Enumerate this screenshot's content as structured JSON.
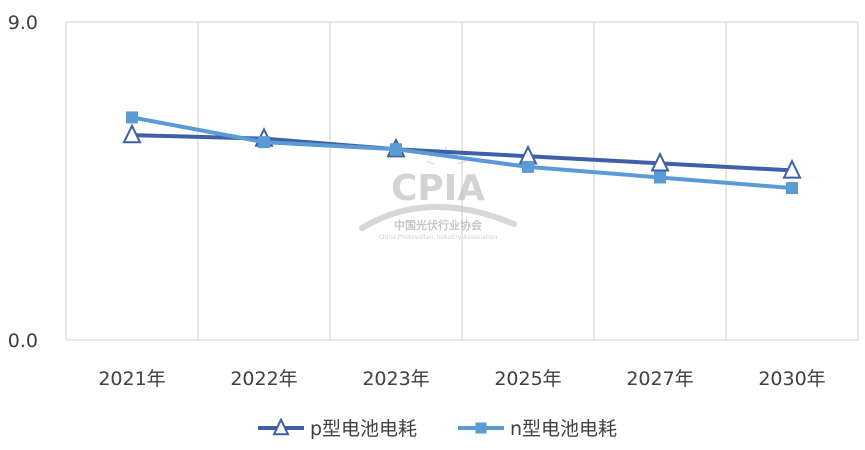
{
  "chart_data": {
    "type": "line",
    "categories": [
      "2021年",
      "2022年",
      "2023年",
      "2025年",
      "2027年",
      "2030年"
    ],
    "series": [
      {
        "name": "p型电池电耗",
        "values": [
          5.8,
          5.7,
          5.4,
          5.2,
          5.0,
          4.8
        ],
        "color": "#3F5FA6",
        "marker": "triangle-open"
      },
      {
        "name": "n型电池电耗",
        "values": [
          6.3,
          5.6,
          5.4,
          4.9,
          4.6,
          4.3
        ],
        "color": "#5B9BD5",
        "marker": "square"
      }
    ],
    "ylim": [
      0,
      9
    ],
    "yticks": [
      "0.0",
      "9.0"
    ],
    "grid": {
      "vertical": true,
      "horizontal": false
    },
    "legend": "bottom-center",
    "title": "",
    "xlabel": "",
    "ylabel": ""
  },
  "watermark": {
    "brand": "CPIA",
    "name_cn": "中国光伏行业协会",
    "name_en": "China Photovoltaic Industry Association"
  }
}
